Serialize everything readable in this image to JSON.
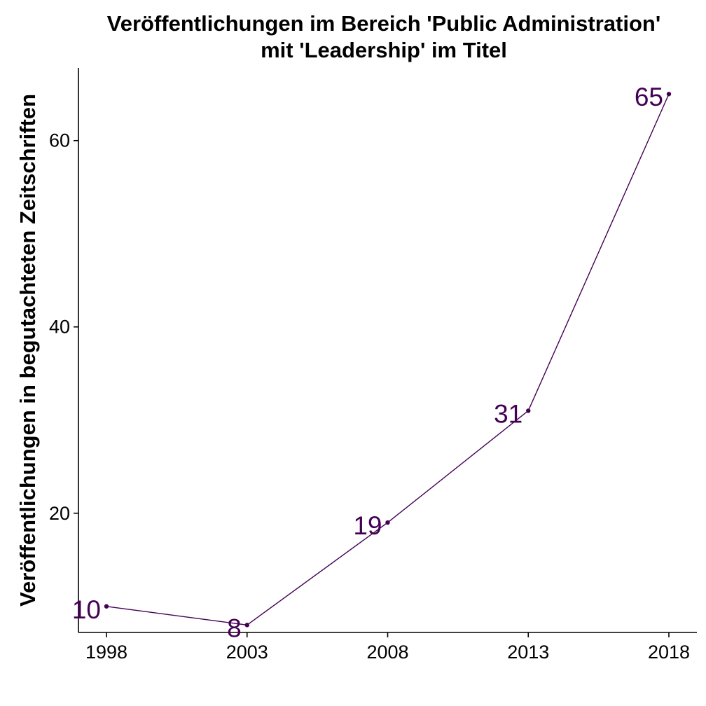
{
  "chart_data": {
    "type": "line",
    "title": [
      "Veröffentlichungen im Bereich 'Public Administration'",
      "mit 'Leadership' im Titel"
    ],
    "xlabel": "",
    "ylabel": "Veröffentlichungen in begutachteten Zeitschriften",
    "x": [
      1998,
      2003,
      2008,
      2013,
      2018
    ],
    "series": [
      {
        "values": [
          10,
          8,
          19,
          31,
          65
        ]
      }
    ],
    "data_labels": [
      "10",
      "8",
      "19",
      "31",
      "65"
    ],
    "xticks": [
      "1998",
      "2003",
      "2008",
      "2013",
      "2018"
    ],
    "yticks": [
      "20",
      "40",
      "60"
    ],
    "ytick_values": [
      20,
      40,
      60
    ],
    "xlim": [
      1998,
      2018
    ],
    "ylim": [
      7.2,
      67.8
    ],
    "grid": false,
    "legend": "none",
    "colors": {
      "line": "#440154",
      "labels": "#440154",
      "axis": "#000000"
    }
  }
}
